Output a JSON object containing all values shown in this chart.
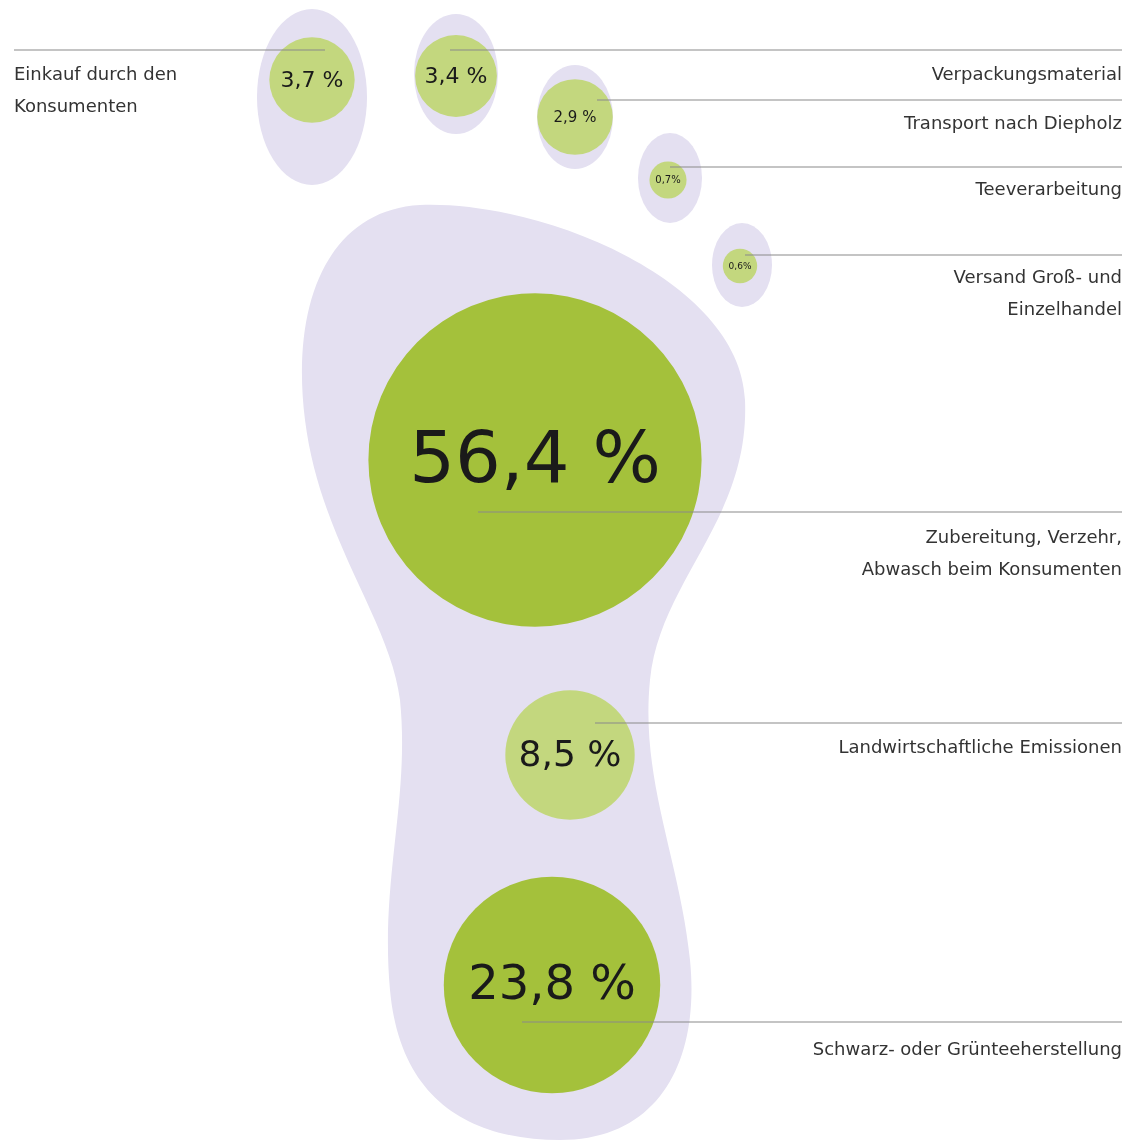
{
  "chart_data": {
    "type": "other",
    "categories": [
      "Einkauf durch den\nKonsumenten",
      "Verpackungsmaterial",
      "Transport nach Diepholz",
      "Teeverarbeitung",
      "Versand Groß- und\nEinzelhandel",
      "Zubereitung, Verzehr,\nAbwasch beim Konsumenten",
      "Landwirtschaftliche Emissionen",
      "Schwarz- oder Grünteeherstellung"
    ],
    "values": [
      3.7,
      3.4,
      2.9,
      0.7,
      0.6,
      56.4,
      8.5,
      23.8
    ],
    "value_labels": [
      "3,7 %",
      "3,4 %",
      "2,9 %",
      "0,7%",
      "0,6%",
      "56,4 %",
      "8,5 %",
      "23,8 %"
    ],
    "colors": [
      "#c3d77e",
      "#c3d77e",
      "#c3d77e",
      "#c3d77e",
      "#c3d77e",
      "#a4c13b",
      "#c3d77e",
      "#a4c13b"
    ]
  }
}
